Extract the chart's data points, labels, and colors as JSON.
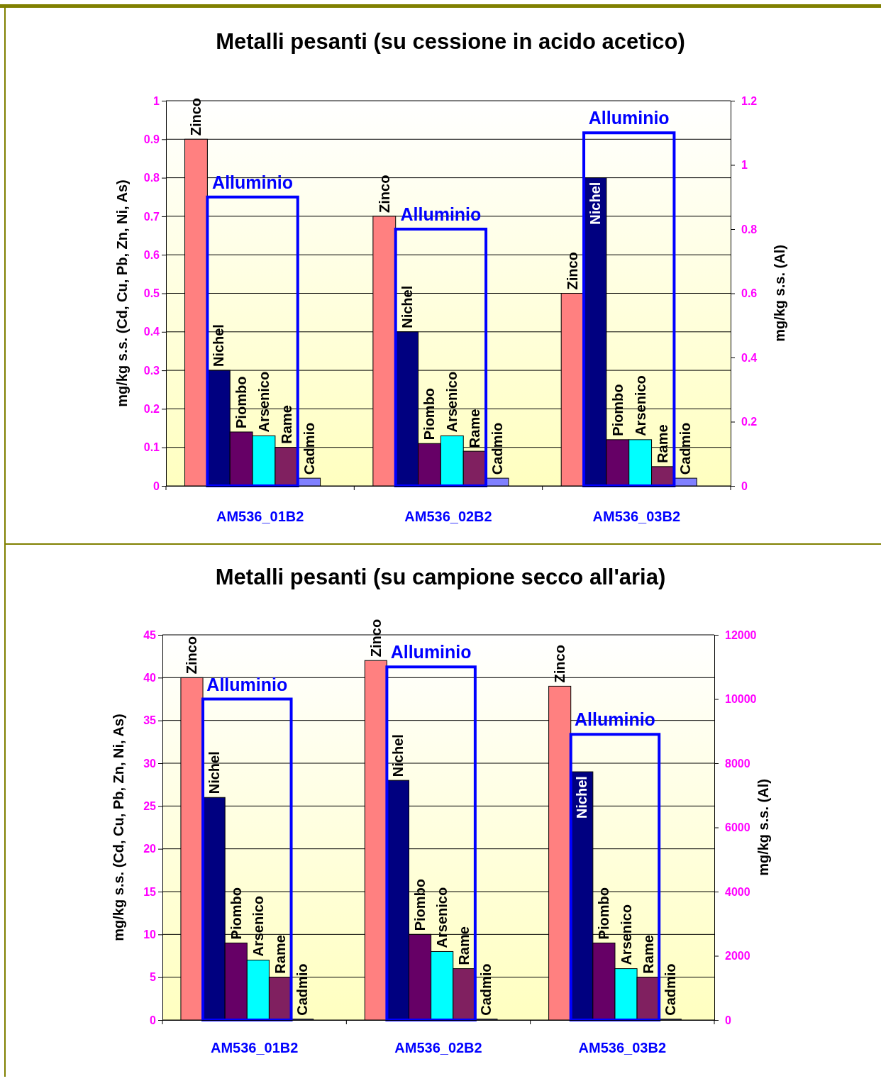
{
  "chart_data": [
    {
      "type": "bar",
      "title": "Metalli pesanti (su cessione in acido acetico)",
      "categories": [
        "AM536_01B2",
        "AM536_02B2",
        "AM536_03B2"
      ],
      "ylabel": "mg/kg s.s. (Cd, Cu, Pb, Zn, Ni, As)",
      "y2label": "mg/kg s.s. (Al)",
      "ylim": [
        0,
        1
      ],
      "yticks": [
        0,
        0.1,
        0.2,
        0.3,
        0.4,
        0.5,
        0.6,
        0.7,
        0.8,
        0.9,
        1
      ],
      "y2lim": [
        0,
        1.2
      ],
      "y2ticks": [
        0,
        0.2,
        0.4,
        0.6,
        0.8,
        1,
        1.2
      ],
      "grid": "y",
      "legend": false,
      "series": [
        {
          "name": "Zinco",
          "color": "#ff8080",
          "values": [
            0.9,
            0.7,
            0.5
          ]
        },
        {
          "name": "Nichel",
          "color": "#000080",
          "values": [
            0.3,
            0.4,
            0.8
          ]
        },
        {
          "name": "Piombo",
          "color": "#660066",
          "values": [
            0.14,
            0.11,
            0.12
          ]
        },
        {
          "name": "Arsenico",
          "color": "#00ffff",
          "values": [
            0.13,
            0.13,
            0.12
          ]
        },
        {
          "name": "Rame",
          "color": "#802060",
          "values": [
            0.1,
            0.09,
            0.05
          ]
        },
        {
          "name": "Cadmio",
          "color": "#8080ff",
          "values": [
            0.02,
            0.02,
            0.02
          ]
        },
        {
          "name": "Alluminio",
          "color": "#0000ff",
          "axis": "y2",
          "values": [
            0.9,
            0.8,
            1.1
          ]
        }
      ]
    },
    {
      "type": "bar",
      "title": "Metalli pesanti (su campione secco all'aria)",
      "categories": [
        "AM536_01B2",
        "AM536_02B2",
        "AM536_03B2"
      ],
      "ylabel": "mg/kg s.s. (Cd, Cu, Pb, Zn, Ni, As)",
      "y2label": "mg/kg s.s. (Al)",
      "ylim": [
        0,
        45
      ],
      "yticks": [
        0,
        5,
        10,
        15,
        20,
        25,
        30,
        35,
        40,
        45
      ],
      "y2lim": [
        0,
        12000
      ],
      "y2ticks": [
        0,
        2000,
        4000,
        6000,
        8000,
        10000,
        12000
      ],
      "grid": "y",
      "legend": false,
      "series": [
        {
          "name": "Zinco",
          "color": "#ff8080",
          "values": [
            40,
            42,
            39
          ]
        },
        {
          "name": "Nichel",
          "color": "#000080",
          "values": [
            26,
            28,
            29
          ]
        },
        {
          "name": "Piombo",
          "color": "#660066",
          "values": [
            9,
            10,
            9
          ]
        },
        {
          "name": "Arsenico",
          "color": "#00ffff",
          "values": [
            7,
            8,
            6
          ]
        },
        {
          "name": "Rame",
          "color": "#802060",
          "values": [
            5,
            6,
            5
          ]
        },
        {
          "name": "Cadmio",
          "color": "#8080ff",
          "values": [
            0.1,
            0.1,
            0.1
          ]
        },
        {
          "name": "Alluminio",
          "color": "#0000ff",
          "axis": "y2",
          "values": [
            10000,
            11000,
            8900
          ]
        }
      ]
    }
  ]
}
